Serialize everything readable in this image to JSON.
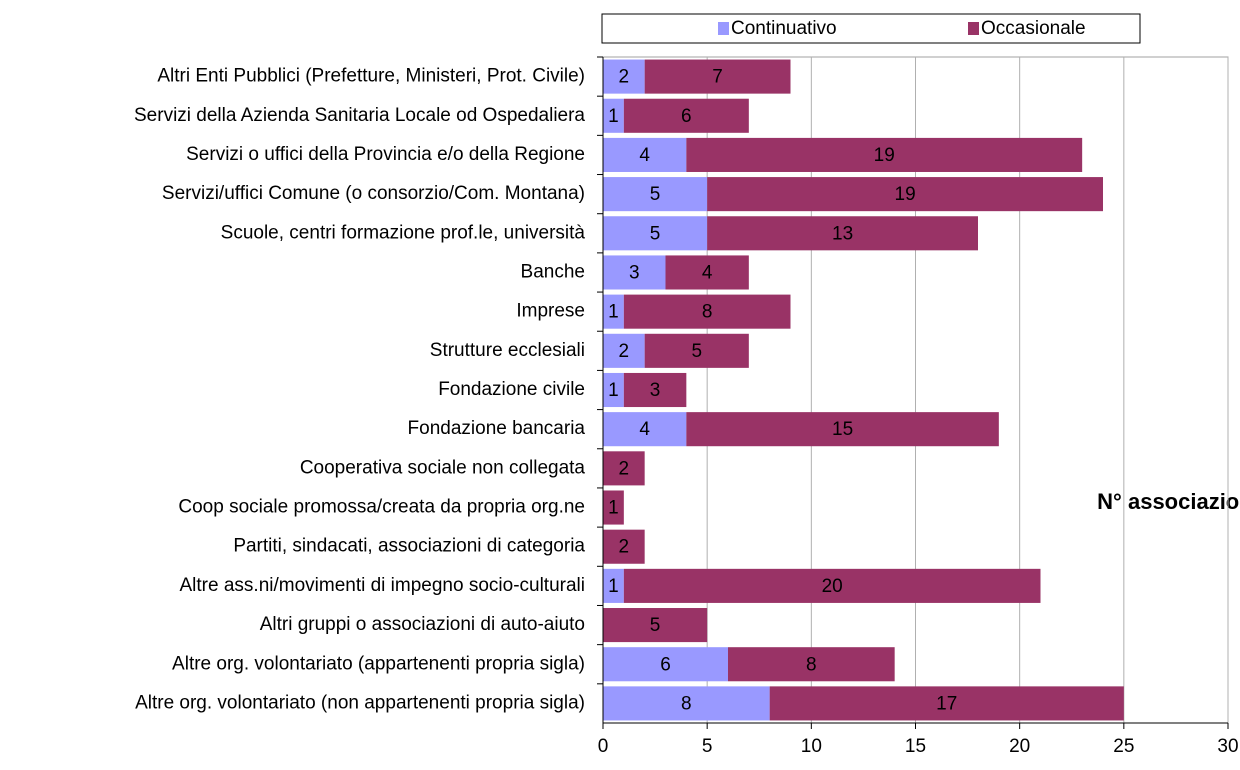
{
  "chart_data": {
    "type": "stacked-bar-horizontal",
    "categories": [
      "Altri Enti Pubblici (Prefetture, Ministeri, Prot. Civile)",
      "Servizi della Azienda Sanitaria Locale od Ospedaliera",
      "Servizi o uffici della Provincia e/o della Regione",
      "Servizi/uffici Comune (o consorzio/Com. Montana)",
      "Scuole, centri formazione prof.le, università",
      "Banche",
      "Imprese",
      "Strutture ecclesiali",
      "Fondazione civile",
      "Fondazione bancaria",
      "Cooperativa sociale non collegata",
      "Coop sociale promossa/creata da propria org.ne",
      "Partiti, sindacati, associazioni di categoria",
      "Altre ass.ni/movimenti di impegno socio-culturali",
      "Altri gruppi o associazioni di auto-aiuto",
      "Altre org. volontariato (appartenenti propria sigla)",
      "Altre org. volontariato (non appartenenti propria sigla)"
    ],
    "series": [
      {
        "name": "Continuativo",
        "color": "#9999ff",
        "values": [
          2,
          1,
          4,
          5,
          5,
          3,
          1,
          2,
          1,
          4,
          null,
          null,
          null,
          1,
          null,
          6,
          8
        ]
      },
      {
        "name": "Occasionale",
        "color": "#993366",
        "values": [
          7,
          6,
          19,
          19,
          13,
          4,
          8,
          5,
          3,
          15,
          2,
          1,
          2,
          20,
          5,
          8,
          17
        ]
      }
    ],
    "annotation": "N° associazioni",
    "xlim": [
      0,
      30
    ],
    "xticks": [
      0,
      5,
      10,
      15,
      20,
      25,
      30
    ],
    "grid": true,
    "legend": "top"
  }
}
